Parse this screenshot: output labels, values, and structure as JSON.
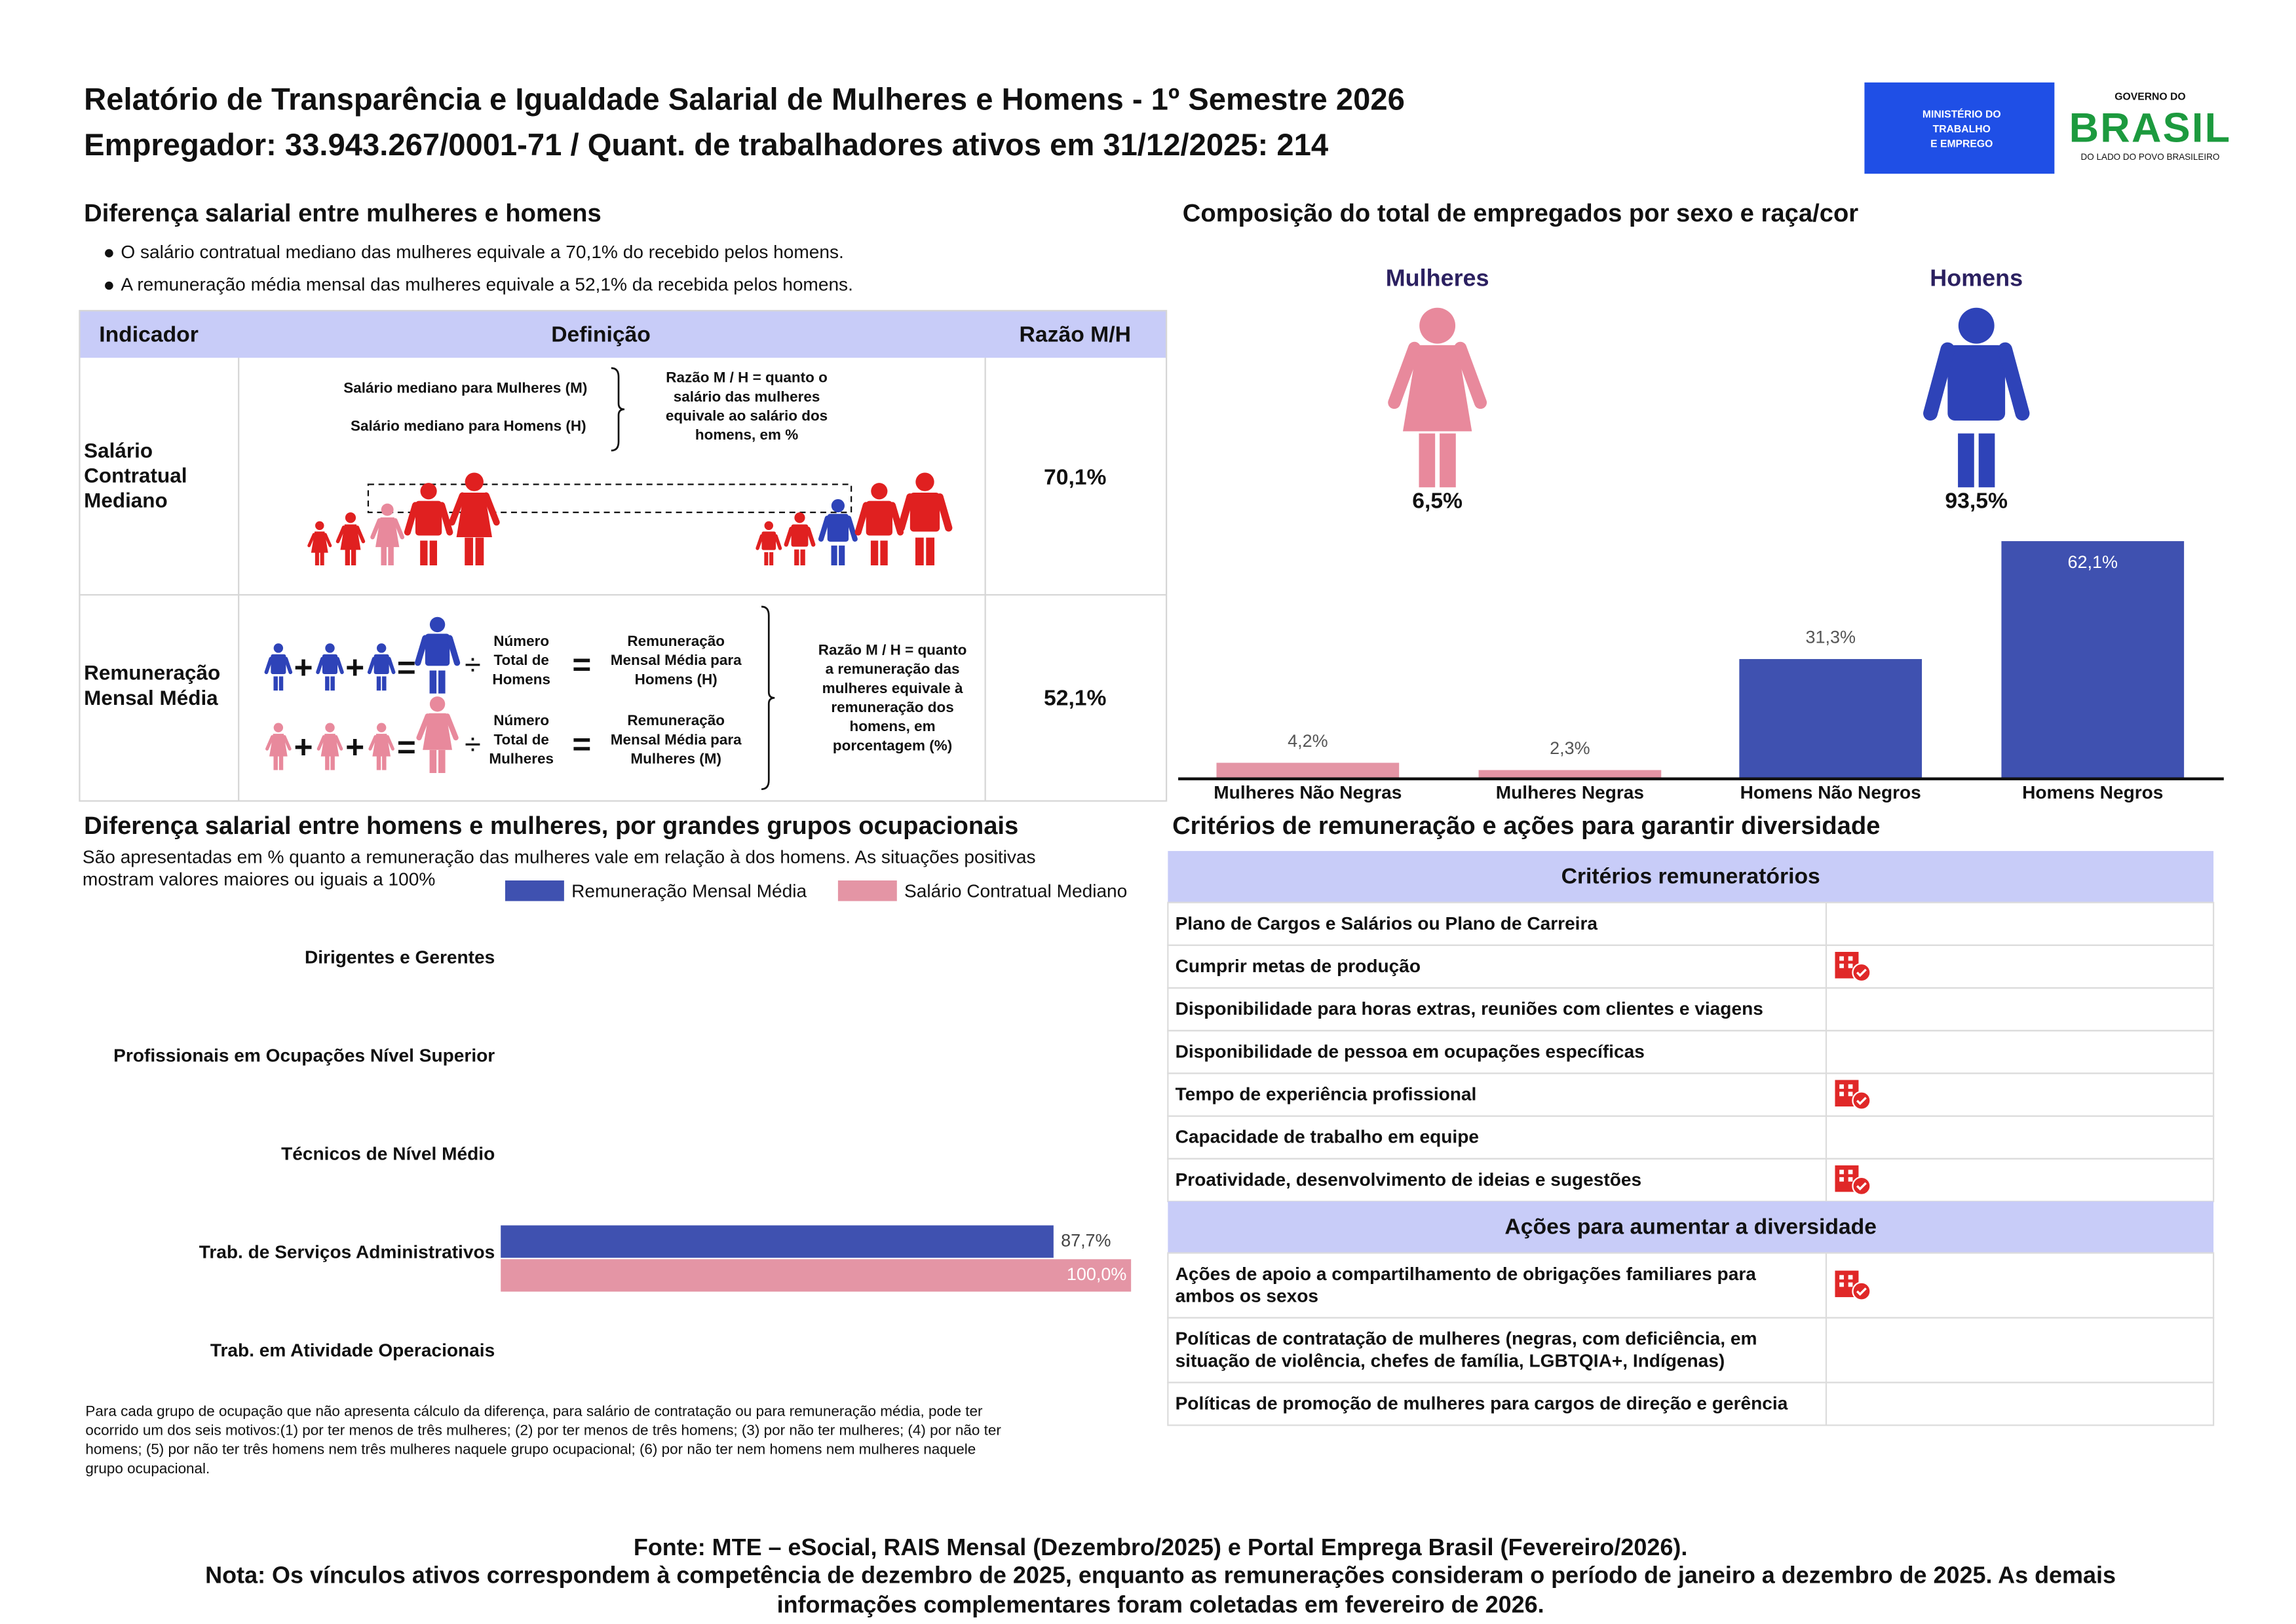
{
  "header": {
    "title": "Relatório de Transparência e Igualdade Salarial de Mulheres e Homens - 1º Semestre 2026",
    "subtitle": "Empregador: 33.943.267/0001-71 / Quant. de trabalhadores ativos em 31/12/2025: 214",
    "ministry": [
      "MINISTÉRIO DO",
      "TRABALHO",
      "E EMPREGO"
    ],
    "government": {
      "top": "GOVERNO DO",
      "name": "BRASIL",
      "slogan": "DO LADO DO POVO BRASILEIRO"
    }
  },
  "salary_gap": {
    "title": "Diferença salarial entre mulheres e homens",
    "bullets": [
      "O salário contratual mediano das mulheres equivale a 70,1% do recebido pelos homens.",
      "A remuneração média mensal das mulheres equivale a 52,1% da recebida pelos homens."
    ],
    "table": {
      "headers": [
        "Indicador",
        "Definição",
        "Razão M/H"
      ],
      "rows": [
        {
          "indicator": [
            "Salário",
            "Contratual",
            "Mediano"
          ],
          "definition": {
            "women": "Salário mediano para Mulheres (M)",
            "men": "Salário mediano para Homens (H)",
            "ratio": [
              "Razão M / H = quanto o",
              "salário das mulheres",
              "equivale ao salário dos",
              "homens, em %"
            ]
          },
          "ratio": "70,1%"
        },
        {
          "indicator": [
            "Remuneração",
            "Mensal Média"
          ],
          "definition": {
            "men_count": [
              "Número",
              "Total de",
              "Homens"
            ],
            "men_result": [
              "Remuneração",
              "Mensal Média para",
              "Homens (H)"
            ],
            "women_count": [
              "Número",
              "Total de",
              "Mulheres"
            ],
            "women_result": [
              "Remuneração",
              "Mensal Média para",
              "Mulheres (M)"
            ],
            "ratio": [
              "Razão M / H = quanto",
              "a remuneração das",
              "mulheres equivale à",
              "remuneração dos",
              "homens, em",
              "porcentagem (%)"
            ]
          },
          "ratio": "52,1%"
        }
      ]
    }
  },
  "composition": {
    "title": "Composição do total de empregados por sexo e raça/cor",
    "groups": [
      {
        "label": "Mulheres",
        "share": "6,5%"
      },
      {
        "label": "Homens",
        "share": "93,5%"
      }
    ]
  },
  "chart_data": [
    {
      "type": "bar",
      "categories": [
        "Mulheres Não Negras",
        "Mulheres Negras",
        "Homens Não Negros",
        "Homens Negros"
      ],
      "values": [
        4.2,
        2.3,
        31.3,
        62.1
      ],
      "value_labels": [
        "4,2%",
        "2,3%",
        "31,3%",
        "62,1%"
      ],
      "colors": [
        "#e495a5",
        "#e495a5",
        "#3f51b0",
        "#3f51b0"
      ]
    },
    {
      "type": "barh",
      "title": "Diferença salarial entre homens e mulheres, por grandes grupos ocupacionais",
      "subtitle": [
        "São apresentadas em % quanto a remuneração das mulheres vale em relação à dos homens. As situações positivas",
        "mostram valores maiores ou iguais a 100%"
      ],
      "categories": [
        "Dirigentes e Gerentes",
        "Profissionais em Ocupações Nível Superior",
        "Técnicos de Nível Médio",
        "Trab. de Serviços Administrativos",
        "Trab. em Atividade Operacionais"
      ],
      "series": [
        {
          "name": "Remuneração Mensal Média",
          "color": "#3f51b0",
          "values": [
            null,
            null,
            null,
            87.7,
            null
          ],
          "value_labels": [
            null,
            null,
            null,
            "87,7%",
            null
          ]
        },
        {
          "name": "Salário Contratual Mediano",
          "color": "#e495a5",
          "values": [
            null,
            null,
            null,
            100.0,
            null
          ],
          "value_labels": [
            null,
            null,
            null,
            "100,0%",
            null
          ]
        }
      ],
      "legend": "top-right",
      "note": [
        "Para cada grupo de ocupação que não apresenta cálculo da diferença, para salário de contratação ou para remuneração média, pode ter",
        "ocorrido um dos seis motivos:(1) por ter menos de três mulheres; (2) por ter menos de três homens; (3) por não ter mulheres; (4) por não ter",
        "homens; (5) por não ter três homens nem três mulheres naquele grupo ocupacional; (6) por não ter nem homens nem mulheres naquele",
        "grupo ocupacional."
      ]
    }
  ],
  "criteria": {
    "title": "Critérios de remuneração e ações para garantir diversidade",
    "sections": [
      {
        "heading": "Critérios remuneratórios",
        "items": [
          {
            "label": [
              "Plano de Cargos e Salários ou Plano de Carreira"
            ],
            "checked": false
          },
          {
            "label": [
              "Cumprir metas de produção"
            ],
            "checked": true
          },
          {
            "label": [
              "Disponibilidade para horas extras, reuniões com clientes e viagens"
            ],
            "checked": false
          },
          {
            "label": [
              "Disponibilidade de pessoa em ocupações específicas"
            ],
            "checked": false
          },
          {
            "label": [
              "Tempo de experiência profissional"
            ],
            "checked": true
          },
          {
            "label": [
              "Capacidade de trabalho em equipe"
            ],
            "checked": false
          },
          {
            "label": [
              "Proatividade, desenvolvimento de ideias e sugestões"
            ],
            "checked": true
          }
        ]
      },
      {
        "heading": "Ações para aumentar a diversidade",
        "items": [
          {
            "label": [
              "Ações de apoio a compartilhamento de obrigações familiares para",
              "ambos os sexos"
            ],
            "checked": true
          },
          {
            "label": [
              "Políticas de contratação de mulheres (negras, com deficiência, em",
              "situação de violência, chefes de família, LGBTQIA+, Indígenas)"
            ],
            "checked": false
          },
          {
            "label": [
              "Políticas de promoção de mulheres para cargos de direção e gerência"
            ],
            "checked": false
          }
        ]
      }
    ]
  },
  "footer": {
    "source": "Fonte: MTE – eSocial, RAIS Mensal (Dezembro/2025) e Portal Emprega Brasil (Fevereiro/2026).",
    "note": [
      "Nota: Os vínculos ativos correspondem à competência de dezembro de 2025, enquanto as remunerações consideram o período de janeiro a dezembro de 2025. As demais",
      "informações complementares foram coletadas em fevereiro de 2026."
    ]
  }
}
